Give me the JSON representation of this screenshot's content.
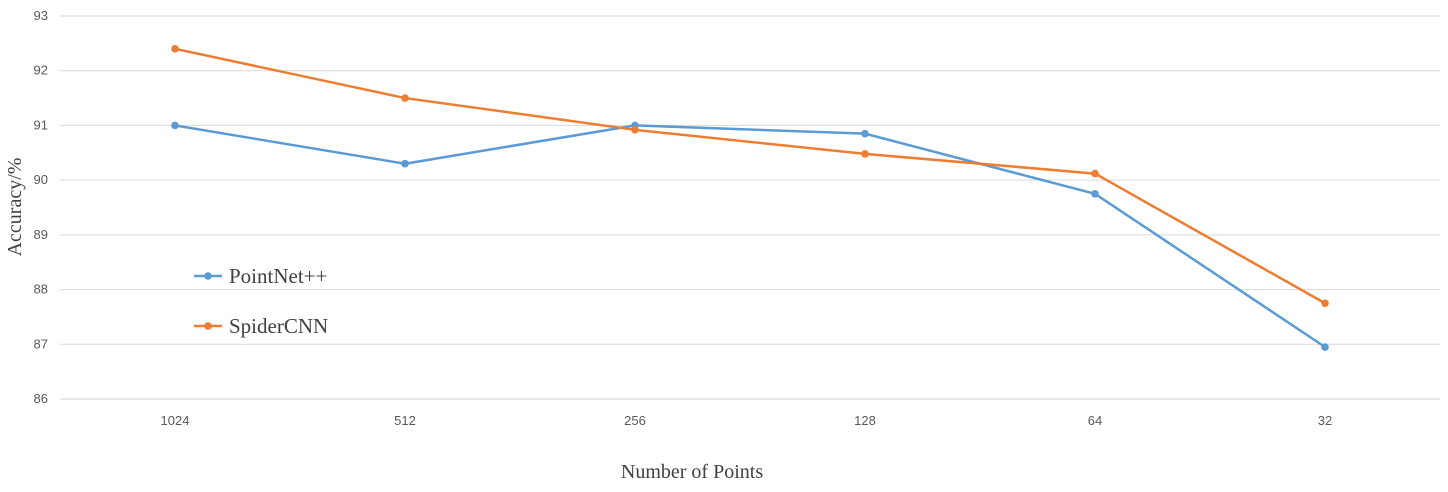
{
  "chart_data": {
    "type": "line",
    "title": "",
    "xlabel": "Number of Points",
    "ylabel": "Accuracy/%",
    "categories": [
      "1024",
      "512",
      "256",
      "128",
      "64",
      "32"
    ],
    "ylim": [
      86,
      93
    ],
    "yticks": [
      "86",
      "87",
      "88",
      "89",
      "90",
      "91",
      "92",
      "93"
    ],
    "grid": true,
    "legend_position": "left",
    "series": [
      {
        "name": "PointNet++",
        "color": "#5B9BD5",
        "values": [
          91.0,
          90.3,
          91.0,
          90.85,
          89.75,
          86.95
        ]
      },
      {
        "name": "SpiderCNN",
        "color": "#ED7D31",
        "values": [
          92.4,
          91.5,
          90.92,
          90.48,
          90.12,
          87.75
        ]
      }
    ]
  }
}
